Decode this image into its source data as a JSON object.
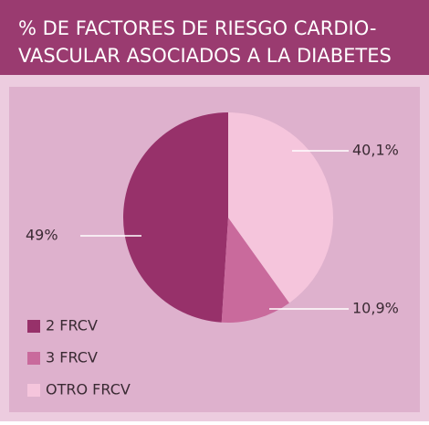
{
  "chart_data": {
    "type": "pie",
    "title": [
      "% DE FACTORES DE RIESGO CARDIO-",
      "VASCULAR ASOCIADOS A LA DIABETES"
    ],
    "categories": [
      "2 FRCV",
      "3 FRCV",
      "OTRO FRCV"
    ],
    "values": [
      49,
      10.9,
      40.1
    ],
    "value_labels": [
      "49%",
      "10,9%",
      "40,1%"
    ],
    "colors": [
      "#97316a",
      "#c96a9c",
      "#f5c5dc"
    ]
  }
}
